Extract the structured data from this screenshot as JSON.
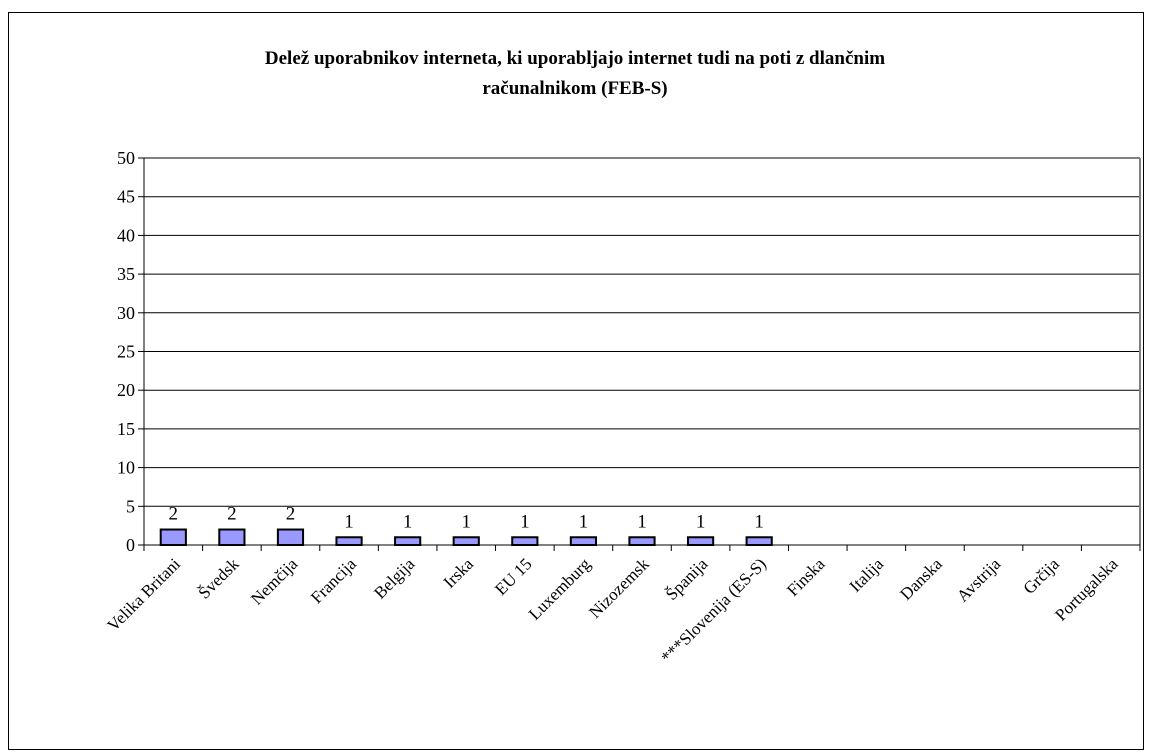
{
  "chart_data": {
    "type": "bar",
    "title_lines": [
      "Delež uporabnikov interneta, ki uporabljajo internet tudi na poti z dlančnim",
      "računalnikom (FEB-S)"
    ],
    "categories": [
      "Velika Britanija",
      "Švedska",
      "Nemčija",
      "Francija",
      "Belgija",
      "Irska",
      "EU 15",
      "Luxemburg",
      "Nizozemska",
      "Španija",
      "***Slovenija (ES-S)",
      "Finska",
      "Italija",
      "Danska",
      "Avstrija",
      "Grčija",
      "Portugalska"
    ],
    "category_labels": [
      "Velika Britani",
      "Švedsk",
      "Nemčija",
      "Francija",
      "Belgija",
      "Irska",
      "EU 15",
      "Luxemburg",
      "Nizozemsk",
      "Španija",
      "***Slovenija (ES-S)",
      "Finska",
      "Italija",
      "Danska",
      "Avstrija",
      "Grčija",
      "Portugalska"
    ],
    "values": [
      2,
      2,
      2,
      1,
      1,
      1,
      1,
      1,
      1,
      1,
      1,
      0,
      0,
      0,
      0,
      0,
      0
    ],
    "data_labels": [
      "2",
      "2",
      "2",
      "1",
      "1",
      "1",
      "1",
      "1",
      "1",
      "1",
      "1",
      "",
      "",
      "",
      "",
      "",
      ""
    ],
    "ylim": [
      0,
      50
    ],
    "yticks": [
      0,
      5,
      10,
      15,
      20,
      25,
      30,
      35,
      40,
      45,
      50
    ],
    "grid": true,
    "legend": "none",
    "colors": {
      "bar_fill": "#9999FF",
      "bar_stroke": "#000000",
      "grid": "#000000",
      "plot_border": "#808080"
    }
  }
}
